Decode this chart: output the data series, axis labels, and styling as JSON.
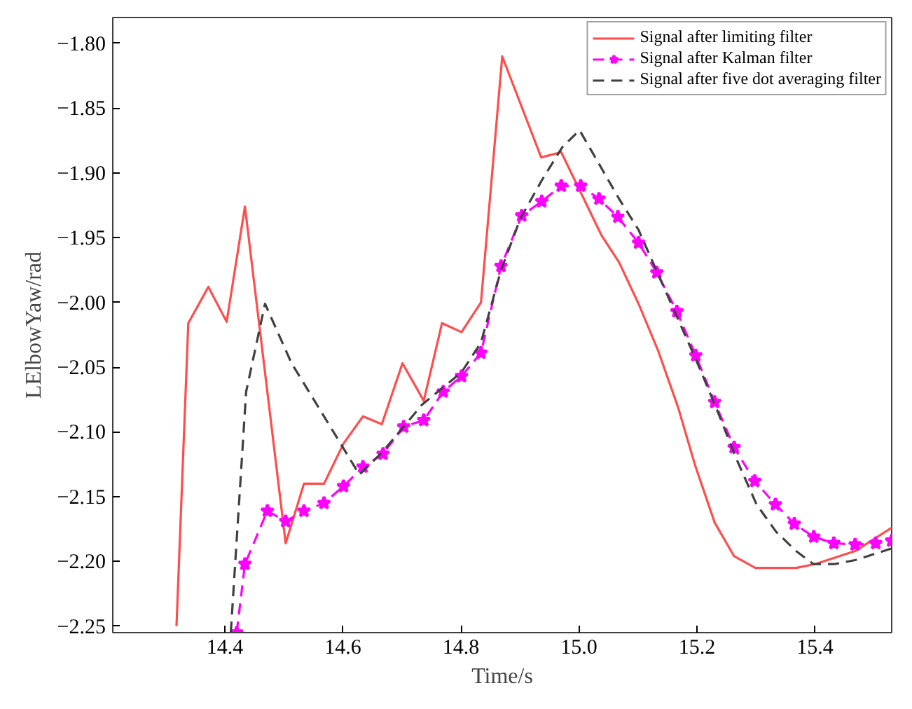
{
  "chart_data": {
    "type": "line",
    "xlabel": "Time/s",
    "ylabel": "LElbowYaw/rad",
    "xlim": [
      14.21,
      15.53
    ],
    "ylim": [
      -2.255,
      -1.78
    ],
    "xticks": [
      {
        "value": 14.4,
        "label": "14.4"
      },
      {
        "value": 14.6,
        "label": "14.6"
      },
      {
        "value": 14.8,
        "label": "14.8"
      },
      {
        "value": 15.0,
        "label": "15.0"
      },
      {
        "value": 15.2,
        "label": "15.2"
      },
      {
        "value": 15.4,
        "label": "15.4"
      }
    ],
    "yticks": [
      {
        "value": -1.8,
        "label": "−1.80"
      },
      {
        "value": -1.85,
        "label": "−1.85"
      },
      {
        "value": -1.9,
        "label": "−1.90"
      },
      {
        "value": -1.95,
        "label": "−1.95"
      },
      {
        "value": -2.0,
        "label": "−2.00"
      },
      {
        "value": -2.05,
        "label": "−2.05"
      },
      {
        "value": -2.1,
        "label": "−2.10"
      },
      {
        "value": -2.15,
        "label": "−2.15"
      },
      {
        "value": -2.2,
        "label": "−2.20"
      },
      {
        "value": -2.25,
        "label": "−2.25"
      }
    ],
    "grid": false,
    "legend": "top right",
    "series": [
      {
        "name": "Signal after limiting filter",
        "color": "#ff4d4d",
        "marker": "none",
        "line_style": "solid",
        "x": [
          14.318,
          14.338,
          14.372,
          14.403,
          14.434,
          14.503,
          14.534,
          14.568,
          14.601,
          14.634,
          14.666,
          14.701,
          14.737,
          14.768,
          14.801,
          14.834,
          14.87,
          14.936,
          14.97,
          15.038,
          15.068,
          15.101,
          15.134,
          15.168,
          15.197,
          15.23,
          15.263,
          15.299,
          15.368,
          15.401,
          15.468,
          15.53
        ],
        "values": [
          -2.25,
          -2.016,
          -1.988,
          -2.015,
          -1.926,
          -2.186,
          -2.14,
          -2.14,
          -2.109,
          -2.088,
          -2.094,
          -2.047,
          -2.076,
          -2.016,
          -2.023,
          -2.0,
          -1.81,
          -1.888,
          -1.884,
          -1.948,
          -1.969,
          -2.001,
          -2.037,
          -2.081,
          -2.126,
          -2.17,
          -2.196,
          -2.205,
          -2.205,
          -2.202,
          -2.192,
          -2.174
        ]
      },
      {
        "name": "Signal after Kalman filter",
        "color": "#ff00ff",
        "marker": "star",
        "line_style": "dashed",
        "x": [
          14.42,
          14.434,
          14.472,
          14.503,
          14.534,
          14.568,
          14.601,
          14.634,
          14.668,
          14.703,
          14.737,
          14.77,
          14.801,
          14.834,
          14.868,
          14.903,
          14.937,
          14.97,
          15.003,
          15.034,
          15.066,
          15.101,
          15.132,
          15.166,
          15.198,
          15.23,
          15.263,
          15.298,
          15.333,
          15.365,
          15.398,
          15.432,
          15.468,
          15.503,
          15.53
        ],
        "values": [
          -2.255,
          -2.202,
          -2.161,
          -2.169,
          -2.161,
          -2.155,
          -2.142,
          -2.127,
          -2.117,
          -2.096,
          -2.091,
          -2.069,
          -2.057,
          -2.039,
          -1.972,
          -1.933,
          -1.922,
          -1.91,
          -1.91,
          -1.92,
          -1.934,
          -1.954,
          -1.977,
          -2.007,
          -2.041,
          -2.077,
          -2.112,
          -2.138,
          -2.156,
          -2.171,
          -2.181,
          -2.186,
          -2.187,
          -2.186,
          -2.184
        ]
      },
      {
        "name": "Signal after five dot averaging filter",
        "color": "#404040",
        "marker": "none",
        "line_style": "dashed",
        "x": [
          14.41,
          14.436,
          14.468,
          14.513,
          14.568,
          14.628,
          14.668,
          14.734,
          14.801,
          14.834,
          14.868,
          14.901,
          14.938,
          14.972,
          15.001,
          15.034,
          15.068,
          15.101,
          15.134,
          15.168,
          15.201,
          15.234,
          15.268,
          15.301,
          15.334,
          15.368,
          15.397,
          15.434,
          15.468,
          15.53
        ],
        "values": [
          -2.255,
          -2.069,
          -2.001,
          -2.047,
          -2.088,
          -2.133,
          -2.115,
          -2.079,
          -2.054,
          -2.031,
          -1.975,
          -1.935,
          -1.905,
          -1.88,
          -1.867,
          -1.893,
          -1.92,
          -1.944,
          -1.978,
          -2.013,
          -2.047,
          -2.083,
          -2.122,
          -2.156,
          -2.177,
          -2.192,
          -2.202,
          -2.202,
          -2.199,
          -2.19
        ]
      }
    ]
  }
}
